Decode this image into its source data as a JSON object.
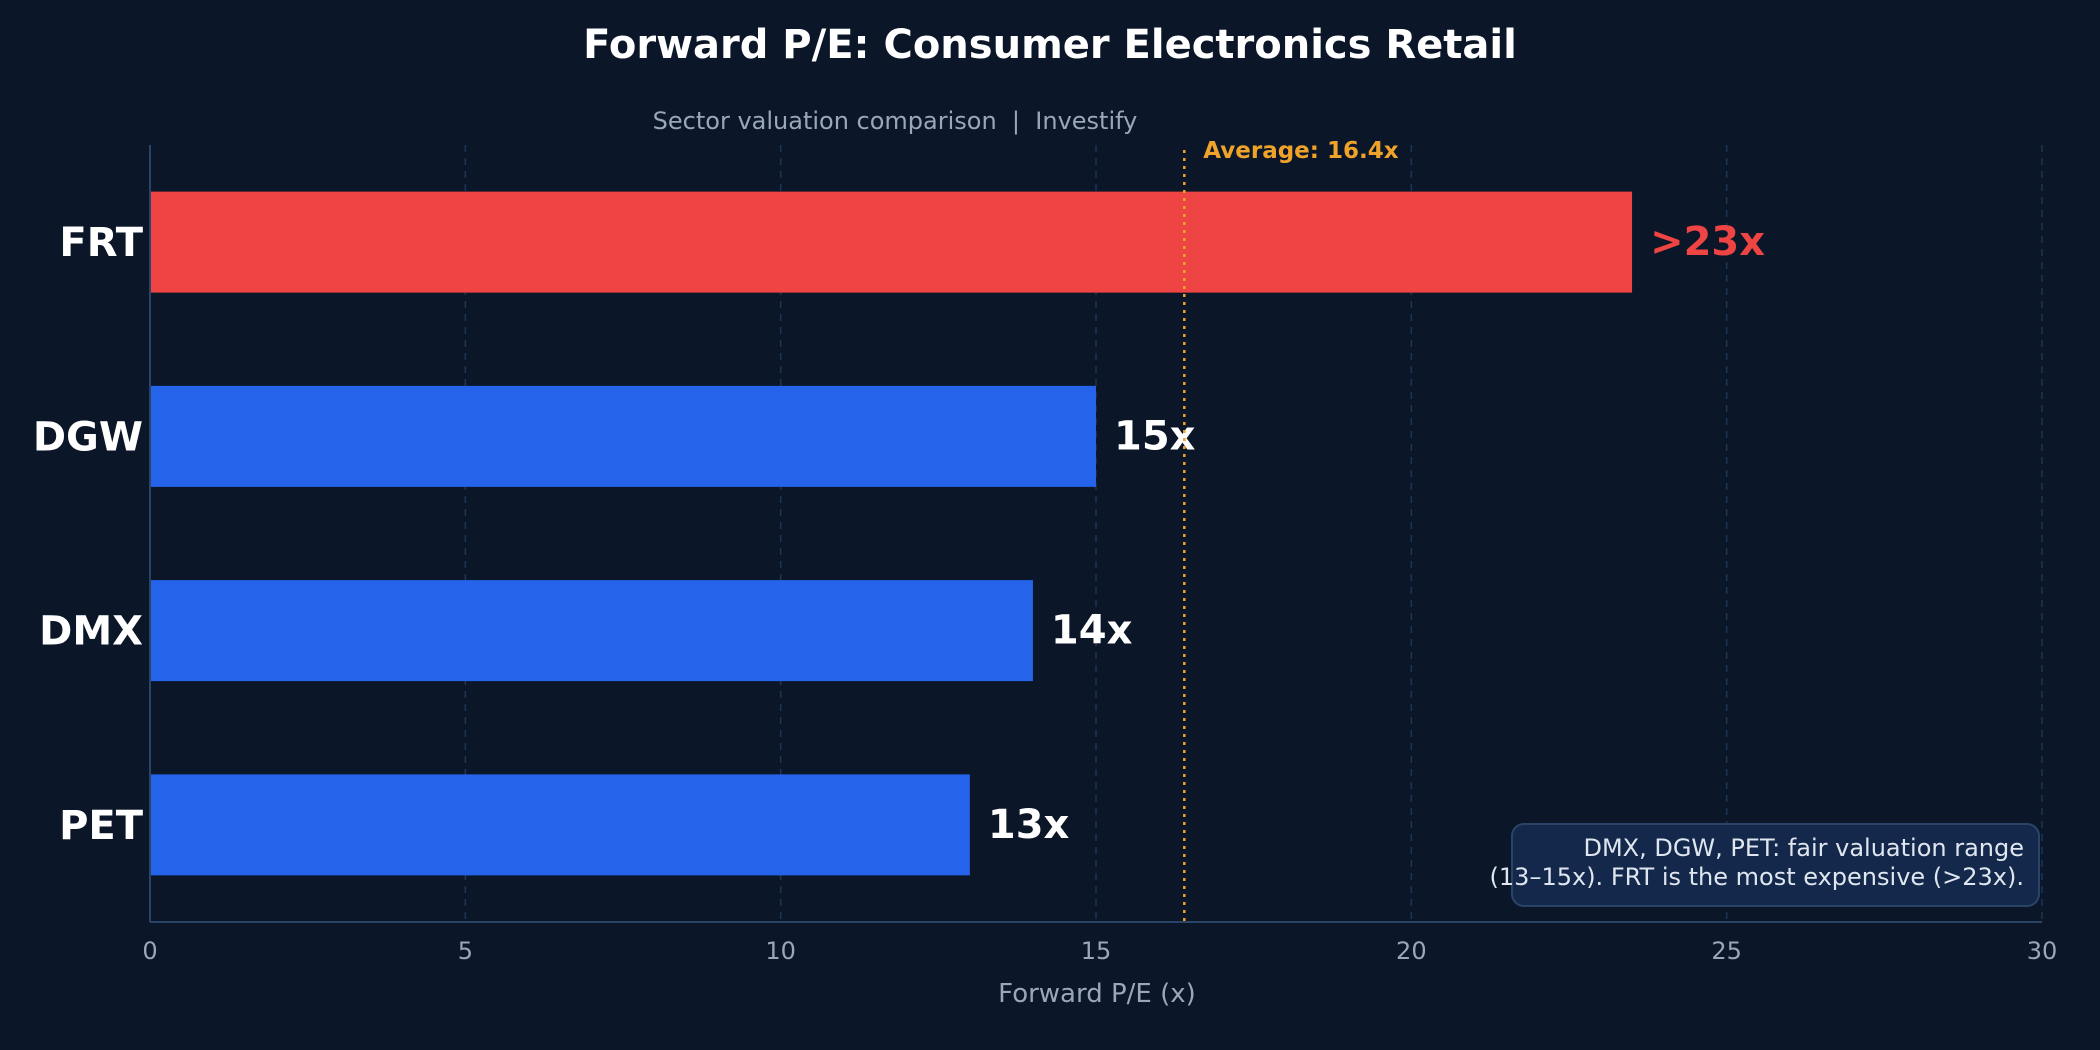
{
  "chart_data": {
    "type": "bar",
    "orientation": "horizontal",
    "title": "Forward P/E: Consumer Electronics Retail",
    "subtitle": "Sector valuation comparison  |  Investify",
    "xlabel": "Forward P/E (x)",
    "ylabel": "",
    "xlim": [
      0,
      30
    ],
    "xticks": [
      0,
      5,
      10,
      15,
      20,
      25,
      30
    ],
    "grid": true,
    "categories": [
      "FRT",
      "DGW",
      "DMX",
      "PET"
    ],
    "values": [
      23.5,
      15,
      14,
      13
    ],
    "value_labels": [
      ">23x",
      "15x",
      "14x",
      "13x"
    ],
    "bar_colors": [
      "#ef4444",
      "#2563eb",
      "#2563eb",
      "#2563eb"
    ],
    "label_colors": [
      "#ef4444",
      "#ffffff",
      "#ffffff",
      "#ffffff"
    ],
    "average": {
      "value": 16.4,
      "label": "Average: 16.4x",
      "color": "#f0a32a"
    },
    "annotation": {
      "lines": [
        "DMX, DGW, PET: fair valuation range",
        "(13–15x). FRT is the most expensive (>23x)."
      ],
      "position": "bottom-right"
    }
  },
  "colors": {
    "background": "#0b1628",
    "grid": "#1e3556",
    "axis": "#2a4468",
    "annotation_fill": "#13284a",
    "annotation_border": "#2a4468"
  }
}
